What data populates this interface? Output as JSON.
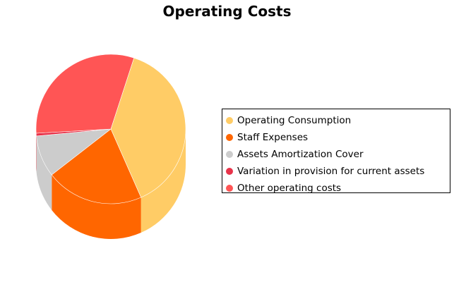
{
  "chart_data": {
    "type": "pie",
    "title": "Operating Costs",
    "legend_position": "right",
    "style": "3d-cylinder",
    "slices": [
      {
        "label": "Operating Consumption",
        "value": 38.4,
        "color": "#ffcc66"
      },
      {
        "label": "Staff Expenses",
        "value": 21.1,
        "color": "#ff6600"
      },
      {
        "label": "Assets Amortization Cover",
        "value": 9.0,
        "color": "#cccccc"
      },
      {
        "label": "Variation in provision for current assets",
        "value": 0.6,
        "color": "#e8334a"
      },
      {
        "label": "Other operating costs",
        "value": 30.9,
        "color": "#ff5555"
      }
    ]
  }
}
